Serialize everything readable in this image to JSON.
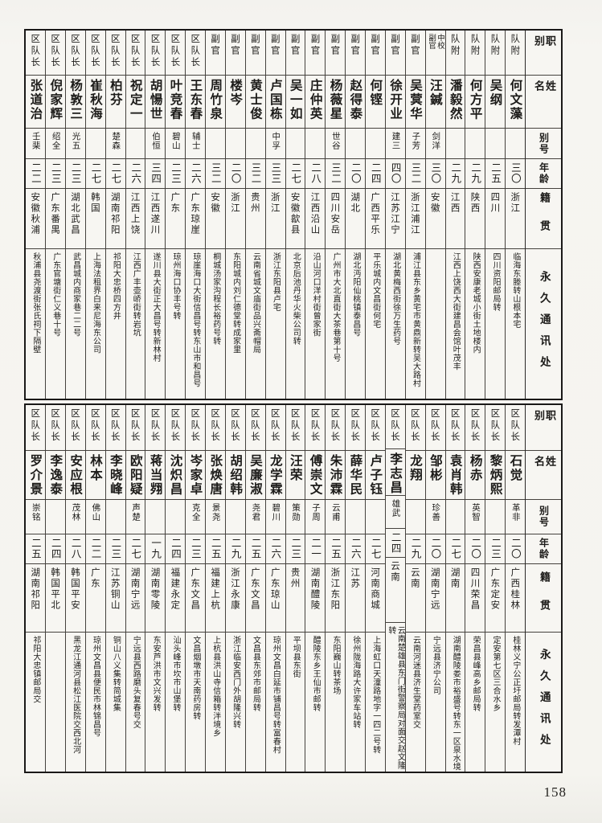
{
  "page_number": "158",
  "headers": {
    "labels": [
      "职别",
      "姓名",
      "别号",
      "年龄",
      "籍贯",
      "永久通讯处"
    ]
  },
  "table_top": {
    "columns_right_to_left": [
      {
        "title": "队附",
        "name": "何文藻",
        "alias": "",
        "age": "三〇",
        "native": "浙江",
        "address": "临海东塍转山根本宅"
      },
      {
        "title": "队附",
        "name": "吴纲",
        "alias": "",
        "age": "二五",
        "native": "四川",
        "address": "四川资阳邮局转"
      },
      {
        "title": "队附",
        "name": "何方平",
        "alias": "",
        "age": "二九",
        "native": "陕西",
        "address": "陕西安康老城小街土地楼内"
      },
      {
        "title": "队附",
        "name": "潘毅然",
        "alias": "",
        "age": "二九",
        "native": "江西",
        "address": "江西上饶西大街建昌会馆叶茂丰"
      },
      {
        "title": "中校副官",
        "name": "汪鍼",
        "alias": "剑洋",
        "age": "三〇",
        "native": "安徽",
        "address": ""
      },
      {
        "title": "副官",
        "name": "吴蓂华",
        "alias": "子芳",
        "age": "三二",
        "native": "浙江浦江",
        "address": "浦江县东乡黄宅市黄鼎新转吴大路村"
      },
      {
        "title": "副官",
        "name": "徐开业",
        "alias": "建三",
        "age": "四〇",
        "native": "江苏江宁",
        "address": "湖北黄梅西街徐万生药号"
      },
      {
        "title": "副官",
        "name": "何铿",
        "alias": "",
        "age": "二四",
        "native": "广西平乐",
        "address": "平乐城内文昌街何宅"
      },
      {
        "title": "副官",
        "name": "赵得泰",
        "alias": "",
        "age": "二〇",
        "native": "湖北",
        "address": "湖北沔阳仙桃镇泰昌号"
      },
      {
        "title": "副官",
        "name": "杨薇星",
        "alias": "世谷",
        "age": "三二",
        "native": "四川安岳",
        "address": "广州市大北直街大茶巷第十号"
      },
      {
        "title": "副官",
        "name": "庄仲英",
        "alias": "",
        "age": "二八",
        "native": "江西沿山",
        "address": "沿山河口洋村街曾家街"
      },
      {
        "title": "副官",
        "name": "吴一如",
        "alias": "",
        "age": "二七",
        "native": "安徽歙县",
        "address": "北京后池丹华火柴公司转"
      },
      {
        "title": "副官",
        "name": "卢国栋",
        "alias": "中孚",
        "age": "三三",
        "native": "浙江",
        "address": "浙江东阳县卢宅"
      },
      {
        "title": "副官",
        "name": "黄士俊",
        "alias": "",
        "age": "三二",
        "native": "贵州",
        "address": "云南省城文庙街品兴斋帽局"
      },
      {
        "title": "副官",
        "name": "楼岑",
        "alias": "",
        "age": "二〇",
        "native": "浙江",
        "address": "东阳城内刘仁德堂转成家里"
      },
      {
        "title": "副官",
        "name": "周竹泉",
        "alias": "",
        "age": "三二",
        "native": "安徽",
        "address": "桐城汤家沟程长裕药号转"
      },
      {
        "title": "区队长",
        "name": "王东春",
        "alias": "辅士",
        "age": "二六",
        "native": "广东琼崖",
        "address": "琼崖海口大街信昌号转东山市和昌号"
      },
      {
        "title": "区队长",
        "name": "叶竞春",
        "alias": "碧山",
        "age": "二三",
        "native": "广东",
        "address": "琼州海口协丰号转"
      },
      {
        "title": "区队长",
        "name": "胡愓世",
        "alias": "伯恒",
        "age": "三四",
        "native": "江西遂川",
        "address": "遂川县大街正大昌号转新林村"
      },
      {
        "title": "区队长",
        "name": "祝定一",
        "alias": "",
        "age": "二六",
        "native": "江西上饶",
        "address": "江西广丰壶峤街转岩坑"
      },
      {
        "title": "区队长",
        "name": "柏芬",
        "alias": "楚森",
        "age": "二七",
        "native": "湖南祁阳",
        "address": "祁阳大忠桥四方井"
      },
      {
        "title": "区队长",
        "name": "崔秋海",
        "alias": "",
        "age": "二七",
        "native": "韩国",
        "address": "上海法租界白来尼海东公司"
      },
      {
        "title": "区队长",
        "name": "杨敦三",
        "alias": "光五",
        "age": "二三",
        "native": "湖北武昌",
        "address": "武昌城内商家巷二二号"
      },
      {
        "title": "区队长",
        "name": "倪家辉",
        "alias": "绍全",
        "age": "二三",
        "native": "广东番禺",
        "address": "广东官塘街仁义巷十号"
      },
      {
        "title": "区队长",
        "name": "张道治",
        "alias": "壬棐",
        "age": "二二",
        "native": "安徽秋浦",
        "address": "秋浦县尧渡街张氏祠下隔壁"
      }
    ]
  },
  "table_bottom": {
    "columns_right_to_left": [
      {
        "title": "区队长",
        "name": "石觉",
        "alias": "革非",
        "age": "二〇",
        "native": "广西桂林",
        "address": "桂林义宁公正圩邮局转发潭村"
      },
      {
        "title": "区队长",
        "name": "黎炳熙",
        "alias": "",
        "age": "二三",
        "native": "广东定安",
        "address": "定安第七区三合水乡"
      },
      {
        "title": "区队长",
        "name": "杨赤",
        "alias": "英智",
        "age": "二〇",
        "native": "四川荣昌",
        "address": "荣昌县峰高乡邮局转"
      },
      {
        "title": "区队长",
        "name": "袁肖韩",
        "alias": "",
        "age": "二七",
        "native": "湖南",
        "address": "湖南醴陵娄市裕盛号转东一区泉水境"
      },
      {
        "title": "区队长",
        "name": "邹彬",
        "alias": "珍善",
        "age": "二〇",
        "native": "湖南宁远",
        "address": "宁远县济宁公司"
      },
      {
        "title": "区队长",
        "name": "龙翔",
        "alias": "",
        "age": "二九",
        "native": "云南",
        "address": "云南河迷县济生堂药室交"
      },
      {
        "title": "区队长",
        "name": "李志昌",
        "alias": "雄武",
        "age": "二四",
        "native": "云南",
        "address": "云南楚雄县东门街警察局对面交赵文隆转"
      },
      {
        "title": "区队长",
        "name": "卢子钰",
        "alias": "",
        "age": "二七",
        "native": "河南商城",
        "address": "上海虹口天潼路地字一四二号转"
      },
      {
        "title": "区队长",
        "name": "薛华民",
        "alias": "",
        "age": "二六",
        "native": "江苏",
        "address": "徐州陇海路大许家车站转"
      },
      {
        "title": "区队长",
        "name": "朱沛霖",
        "alias": "云甫",
        "age": "二五",
        "native": "浙江东阳",
        "address": "东阳巍山转茶场"
      },
      {
        "title": "区队长",
        "name": "傅崇文",
        "alias": "子周",
        "age": "二一",
        "native": "湖南醴陵",
        "address": "醴陵东乡王仙市邮转"
      },
      {
        "title": "区队长",
        "name": "汪荣",
        "alias": "策勋",
        "age": "二三",
        "native": "贵州",
        "address": "平坝县东街"
      },
      {
        "title": "区队长",
        "name": "龙学霖",
        "alias": "碧川",
        "age": "二六",
        "native": "广东琼山",
        "address": "琼州文昌白延市铺昌号转富春村"
      },
      {
        "title": "区队长",
        "name": "吴廉淑",
        "alias": "尧君",
        "age": "二五",
        "native": "广东文昌",
        "address": "文昌县东郊市邮局转"
      },
      {
        "title": "区队长",
        "name": "胡绍韩",
        "alias": "",
        "age": "二九",
        "native": "浙江永康",
        "address": "浙江临安西门外胡隆兴转"
      },
      {
        "title": "区队长",
        "name": "张焕唐",
        "alias": "景尧",
        "age": "二五",
        "native": "福建上杭",
        "address": "上杭县洪山寺信箱转泮境乡"
      },
      {
        "title": "区队长",
        "name": "岑家卓",
        "alias": "克全",
        "age": "二三",
        "native": "广东文昌",
        "address": "文昌烟墩市天南药房转"
      },
      {
        "title": "区队长",
        "name": "沈炽昌",
        "alias": "",
        "age": "二四",
        "native": "福建永定",
        "address": "汕头峰市坎市山堡转"
      },
      {
        "title": "区队长",
        "name": "蒋当翙",
        "alias": "",
        "age": "一九",
        "native": "湖南零陵",
        "address": "东安芦洪市文兴发转"
      },
      {
        "title": "区队长",
        "name": "欧阳疑",
        "alias": "声楚",
        "age": "二七",
        "native": "湖南宁远",
        "address": "宁远县西路磨头复春号交"
      },
      {
        "title": "区队长",
        "name": "李晓峰",
        "alias": "",
        "age": "二三",
        "native": "江苏铜山",
        "address": "铜山八义集转简城集"
      },
      {
        "title": "区队长",
        "name": "林本",
        "alias": "佛山",
        "age": "二二",
        "native": "广东",
        "address": "琼州文昌县便民市林锦昌号"
      },
      {
        "title": "区队长",
        "name": "安应根",
        "alias": "茂林",
        "age": "二八",
        "native": "韩国平安",
        "address": "黑龙江通河县松江医院交西北河"
      },
      {
        "title": "区队长",
        "name": "李逸泰",
        "alias": "",
        "age": "二四",
        "native": "韩国平北",
        "address": ""
      },
      {
        "title": "区队长",
        "name": "罗介景",
        "alias": "崇铭",
        "age": "二五",
        "native": "湖南祁阳",
        "address": "祁阳大忠镇邮局交"
      }
    ]
  }
}
